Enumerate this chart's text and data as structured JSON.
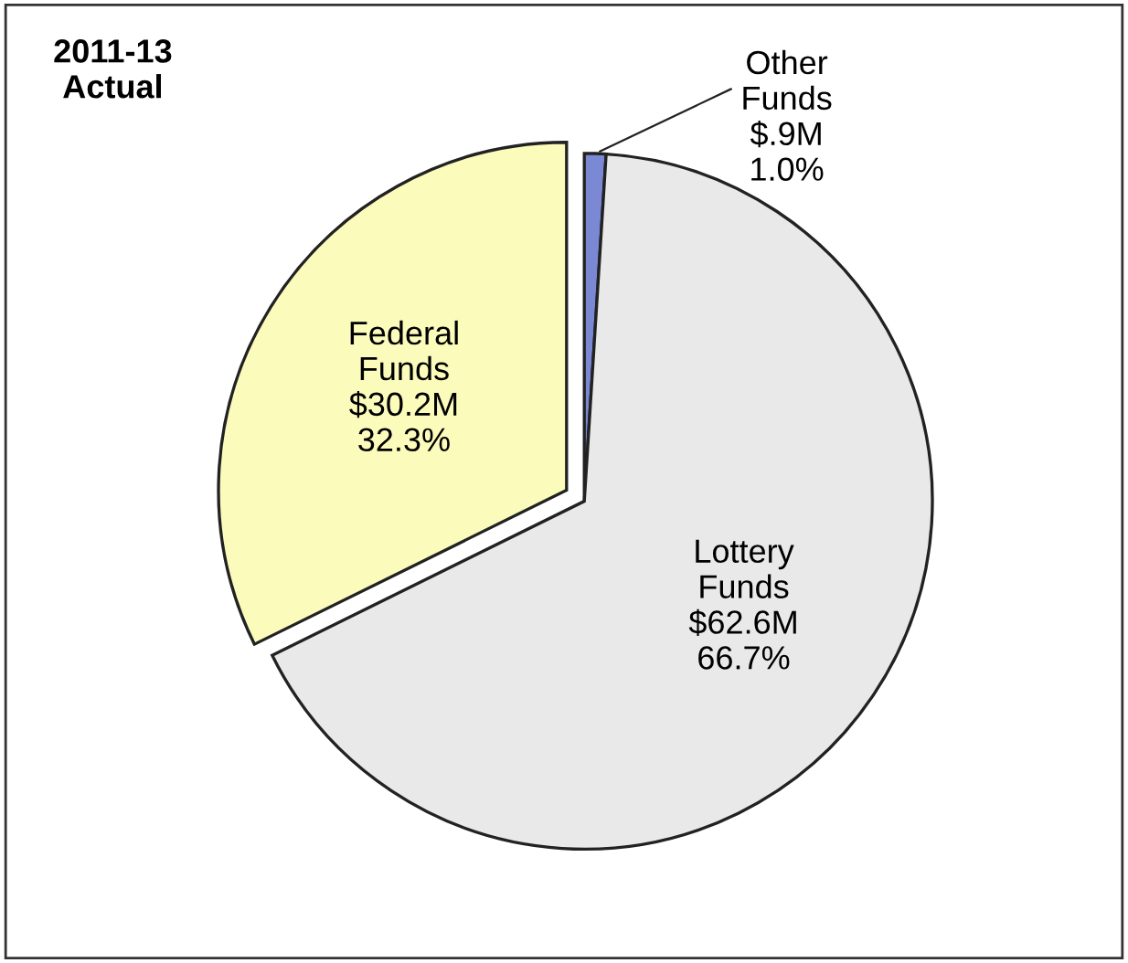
{
  "chart_data": {
    "type": "pie",
    "title": "2011-13\nActual",
    "categories": [
      "Other\nFunds",
      "Lottery\nFunds",
      "Federal\nFunds"
    ],
    "values": [
      1.0,
      66.7,
      32.3
    ],
    "value_labels": [
      "$.9M\n1.0%",
      "$62.6M\n66.7%",
      "$30.2M\n32.3%"
    ],
    "colors": [
      "#7b88d4",
      "#e9e9e9",
      "#fbfbbb"
    ]
  }
}
